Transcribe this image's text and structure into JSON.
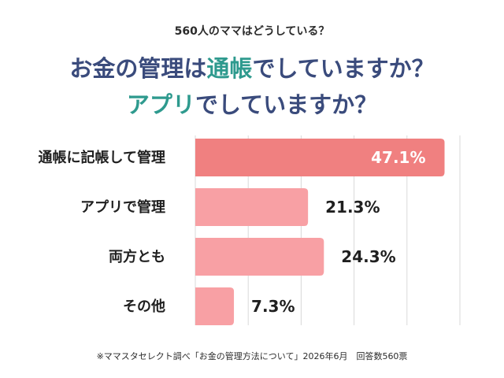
{
  "header": {
    "subtitle": "560人のママはどうしている？",
    "title_line1": {
      "part1": "お金の管理は",
      "part2": "通帳",
      "part3": "でしていますか？"
    },
    "title_line2": {
      "part1": "アプリ",
      "part2": "でしていますか？"
    }
  },
  "colors": {
    "navy": "#3a4b7c",
    "teal": "#2e9a8e",
    "top_bar": "#f08080",
    "other_bars": "#f8a0a4",
    "grid": "#d9d9d9"
  },
  "chart_data": {
    "type": "bar",
    "orientation": "horizontal",
    "categories": [
      "通帳に記帳して管理",
      "アプリで管理",
      "両方とも",
      "その他"
    ],
    "values": [
      47.1,
      21.3,
      24.3,
      7.3
    ],
    "value_labels": [
      "47.1%",
      "21.3%",
      "24.3%",
      "7.3%"
    ],
    "xlim": [
      0,
      50
    ],
    "grid": true,
    "title": "お金の管理は通帳でしていますか？アプリでしていますか？"
  },
  "footnote": "※ママスタセレクト調べ「お金の管理方法について」2026年6月　回答数560票"
}
